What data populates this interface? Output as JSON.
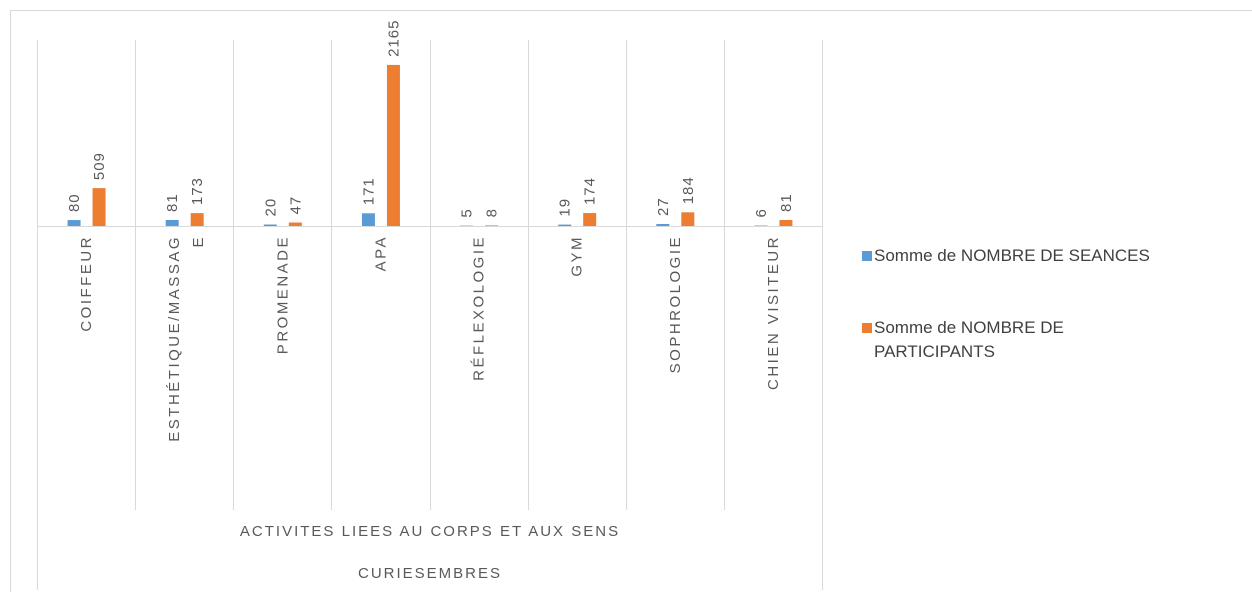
{
  "chart_data": {
    "type": "bar",
    "categories": [
      "COIFFEUR",
      "ESTHÉTIQUE/MASSAGE",
      "PROMENADE",
      "APA",
      "RÉFLEXOLOGIE",
      "GYM",
      "SOPHROLOGIE",
      "CHIEN VISITEUR"
    ],
    "group_label": "ACTIVITES LIEES AU CORPS ET AUX SENS",
    "outer_label": "CURIESEMBRES",
    "series": [
      {
        "name": "Somme de NOMBRE DE SEANCES",
        "color": "#5b9bd5",
        "values": [
          80,
          81,
          20,
          171,
          5,
          19,
          27,
          6
        ]
      },
      {
        "name": "Somme de NOMBRE DE PARTICIPANTS",
        "color": "#ed7d31",
        "values": [
          509,
          173,
          47,
          2165,
          8,
          174,
          184,
          81
        ]
      }
    ],
    "ylim": [
      0,
      2500
    ],
    "legend": "right"
  }
}
